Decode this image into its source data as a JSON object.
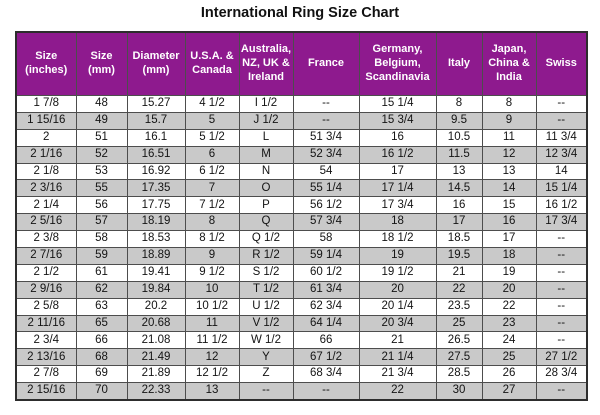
{
  "title": "International Ring Size Chart",
  "colors": {
    "header_bg": "#8e1a8e",
    "header_text": "#ffffff",
    "alt_row_bg": "#c9c9c9",
    "border_outer": "#2d2d2d",
    "border_inner": "#4d4d4d"
  },
  "chart_data": {
    "type": "table",
    "title": "International Ring Size Chart",
    "columns": [
      "Size (inches)",
      "Size (mm)",
      "Diameter (mm)",
      "U.S.A. & Canada",
      "Australia, NZ, UK & Ireland",
      "France",
      "Germany, Belgium, Scandinavia",
      "Italy",
      "Japan, China & India",
      "Swiss"
    ],
    "rows": [
      [
        "1 7/8",
        "48",
        "15.27",
        "4 1/2",
        "I 1/2",
        "--",
        "15 1/4",
        "8",
        "8",
        "--"
      ],
      [
        "1 15/16",
        "49",
        "15.7",
        "5",
        "J 1/2",
        "--",
        "15 3/4",
        "9.5",
        "9",
        "--"
      ],
      [
        "2",
        "51",
        "16.1",
        "5 1/2",
        "L",
        "51 3/4",
        "16",
        "10.5",
        "11",
        "11 3/4"
      ],
      [
        "2 1/16",
        "52",
        "16.51",
        "6",
        "M",
        "52 3/4",
        "16 1/2",
        "11.5",
        "12",
        "12 3/4"
      ],
      [
        "2 1/8",
        "53",
        "16.92",
        "6 1/2",
        "N",
        "54",
        "17",
        "13",
        "13",
        "14"
      ],
      [
        "2 3/16",
        "55",
        "17.35",
        "7",
        "O",
        "55 1/4",
        "17 1/4",
        "14.5",
        "14",
        "15 1/4"
      ],
      [
        "2 1/4",
        "56",
        "17.75",
        "7 1/2",
        "P",
        "56 1/2",
        "17 3/4",
        "16",
        "15",
        "16 1/2"
      ],
      [
        "2 5/16",
        "57",
        "18.19",
        "8",
        "Q",
        "57 3/4",
        "18",
        "17",
        "16",
        "17 3/4"
      ],
      [
        "2 3/8",
        "58",
        "18.53",
        "8 1/2",
        "Q 1/2",
        "58",
        "18 1/2",
        "18.5",
        "17",
        "--"
      ],
      [
        "2 7/16",
        "59",
        "18.89",
        "9",
        "R 1/2",
        "59 1/4",
        "19",
        "19.5",
        "18",
        "--"
      ],
      [
        "2 1/2",
        "61",
        "19.41",
        "9 1/2",
        "S 1/2",
        "60 1/2",
        "19 1/2",
        "21",
        "19",
        "--"
      ],
      [
        "2 9/16",
        "62",
        "19.84",
        "10",
        "T 1/2",
        "61 3/4",
        "20",
        "22",
        "20",
        "--"
      ],
      [
        "2 5/8",
        "63",
        "20.2",
        "10 1/2",
        "U 1/2",
        "62 3/4",
        "20 1/4",
        "23.5",
        "22",
        "--"
      ],
      [
        "2 11/16",
        "65",
        "20.68",
        "11",
        "V 1/2",
        "64 1/4",
        "20 3/4",
        "25",
        "23",
        "--"
      ],
      [
        "2 3/4",
        "66",
        "21.08",
        "11 1/2",
        "W 1/2",
        "66",
        "21",
        "26.5",
        "24",
        "--"
      ],
      [
        "2 13/16",
        "68",
        "21.49",
        "12",
        "Y",
        "67 1/2",
        "21 1/4",
        "27.5",
        "25",
        "27 1/2"
      ],
      [
        "2 7/8",
        "69",
        "21.89",
        "12 1/2",
        "Z",
        "68 3/4",
        "21 3/4",
        "28.5",
        "26",
        "28 3/4"
      ],
      [
        "2 15/16",
        "70",
        "22.33",
        "13",
        "--",
        "--",
        "22",
        "30",
        "27",
        "--"
      ]
    ]
  }
}
